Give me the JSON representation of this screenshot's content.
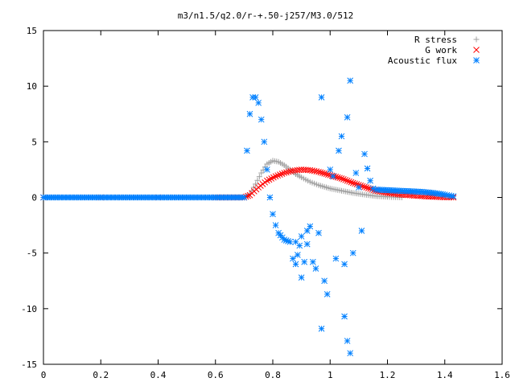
{
  "chart_data": {
    "type": "scatter",
    "title": "m3/n1.5/q2.0/r-+.50-j257/M3.0/512",
    "xlabel": "",
    "ylabel": "",
    "xlim": [
      0,
      1.6
    ],
    "ylim": [
      -15,
      15
    ],
    "xticks": [
      0,
      0.2,
      0.4,
      0.6,
      0.8,
      1,
      1.2,
      1.4,
      1.6
    ],
    "xtick_labels": [
      "0",
      "0.2",
      "0.4",
      "0.6",
      "0.8",
      "1",
      "1.2",
      "1.4",
      "1.6"
    ],
    "yticks": [
      -15,
      -10,
      -5,
      0,
      5,
      10,
      15
    ],
    "ytick_labels": [
      "-15",
      "-10",
      "-5",
      "0",
      "5",
      "10",
      "15"
    ],
    "grid": false,
    "legend_position": "top-right",
    "series": [
      {
        "name": "R stress",
        "marker": "plus",
        "color": "#a0a0a0",
        "points": [
          [
            0.0,
            0
          ],
          [
            0.1,
            0
          ],
          [
            0.2,
            0
          ],
          [
            0.3,
            0
          ],
          [
            0.4,
            0
          ],
          [
            0.5,
            0
          ],
          [
            0.6,
            0
          ],
          [
            0.7,
            0
          ],
          [
            0.72,
            0.3
          ],
          [
            0.74,
            1.2
          ],
          [
            0.76,
            2.2
          ],
          [
            0.78,
            3.0
          ],
          [
            0.8,
            3.3
          ],
          [
            0.82,
            3.2
          ],
          [
            0.84,
            2.9
          ],
          [
            0.86,
            2.5
          ],
          [
            0.88,
            2.1
          ],
          [
            0.9,
            1.8
          ],
          [
            0.93,
            1.4
          ],
          [
            0.96,
            1.1
          ],
          [
            1.0,
            0.8
          ],
          [
            1.04,
            0.6
          ],
          [
            1.08,
            0.4
          ],
          [
            1.12,
            0.25
          ],
          [
            1.16,
            0.12
          ],
          [
            1.2,
            0.05
          ],
          [
            1.25,
            0.0
          ]
        ]
      },
      {
        "name": "G work",
        "marker": "cross",
        "color": "#ff0000",
        "points": [
          [
            0.0,
            0
          ],
          [
            0.2,
            0
          ],
          [
            0.4,
            0
          ],
          [
            0.6,
            0
          ],
          [
            0.7,
            0
          ],
          [
            0.72,
            0.2
          ],
          [
            0.75,
            0.9
          ],
          [
            0.78,
            1.5
          ],
          [
            0.81,
            1.9
          ],
          [
            0.84,
            2.2
          ],
          [
            0.87,
            2.4
          ],
          [
            0.9,
            2.5
          ],
          [
            0.93,
            2.45
          ],
          [
            0.96,
            2.3
          ],
          [
            1.0,
            2.0
          ],
          [
            1.04,
            1.7
          ],
          [
            1.08,
            1.3
          ],
          [
            1.12,
            0.95
          ],
          [
            1.16,
            0.6
          ],
          [
            1.2,
            0.4
          ],
          [
            1.25,
            0.25
          ],
          [
            1.3,
            0.15
          ],
          [
            1.35,
            0.07
          ],
          [
            1.4,
            0.02
          ],
          [
            1.43,
            0.0
          ]
        ]
      },
      {
        "name": "Acoustic flux",
        "marker": "star",
        "color": "#0080ff",
        "points": [
          [
            0.0,
            0
          ],
          [
            0.1,
            0
          ],
          [
            0.2,
            0
          ],
          [
            0.3,
            0
          ],
          [
            0.4,
            0
          ],
          [
            0.5,
            0
          ],
          [
            0.6,
            0
          ],
          [
            0.7,
            0
          ],
          [
            0.71,
            4.2
          ],
          [
            0.72,
            7.5
          ],
          [
            0.73,
            9.0
          ],
          [
            0.74,
            9.0
          ],
          [
            0.75,
            8.5
          ],
          [
            0.76,
            7.0
          ],
          [
            0.77,
            5.0
          ],
          [
            0.78,
            2.5
          ],
          [
            0.79,
            0.0
          ],
          [
            0.8,
            -1.5
          ],
          [
            0.81,
            -2.5
          ],
          [
            0.82,
            -3.2
          ],
          [
            0.84,
            -3.8
          ],
          [
            0.86,
            -4.0
          ],
          [
            0.88,
            -4.0
          ],
          [
            0.9,
            -3.5
          ],
          [
            0.92,
            -3.0
          ],
          [
            0.87,
            -5.5
          ],
          [
            0.88,
            -6.0
          ],
          [
            0.9,
            -7.2
          ],
          [
            0.91,
            -5.8
          ],
          [
            0.92,
            -4.2
          ],
          [
            0.93,
            -2.6
          ],
          [
            0.94,
            -5.8
          ],
          [
            0.95,
            -6.4
          ],
          [
            0.96,
            -3.2
          ],
          [
            0.97,
            9.0
          ],
          [
            0.97,
            -11.8
          ],
          [
            0.98,
            -7.5
          ],
          [
            0.99,
            -8.7
          ],
          [
            1.0,
            2.5
          ],
          [
            1.01,
            1.9
          ],
          [
            1.02,
            -5.5
          ],
          [
            1.03,
            4.2
          ],
          [
            1.04,
            5.5
          ],
          [
            1.05,
            -6.0
          ],
          [
            1.05,
            -10.7
          ],
          [
            1.06,
            7.2
          ],
          [
            1.06,
            -12.9
          ],
          [
            1.07,
            10.5
          ],
          [
            1.07,
            -14.0
          ],
          [
            1.08,
            -5.0
          ],
          [
            1.09,
            2.2
          ],
          [
            1.1,
            0.9
          ],
          [
            1.11,
            -3.0
          ],
          [
            1.12,
            3.9
          ],
          [
            1.13,
            2.6
          ],
          [
            1.14,
            1.5
          ],
          [
            1.15,
            0.8
          ],
          [
            1.16,
            0.7
          ],
          [
            1.2,
            0.65
          ],
          [
            1.24,
            0.6
          ],
          [
            1.28,
            0.55
          ],
          [
            1.32,
            0.5
          ],
          [
            1.36,
            0.4
          ],
          [
            1.4,
            0.25
          ],
          [
            1.43,
            0.1
          ]
        ]
      }
    ]
  }
}
